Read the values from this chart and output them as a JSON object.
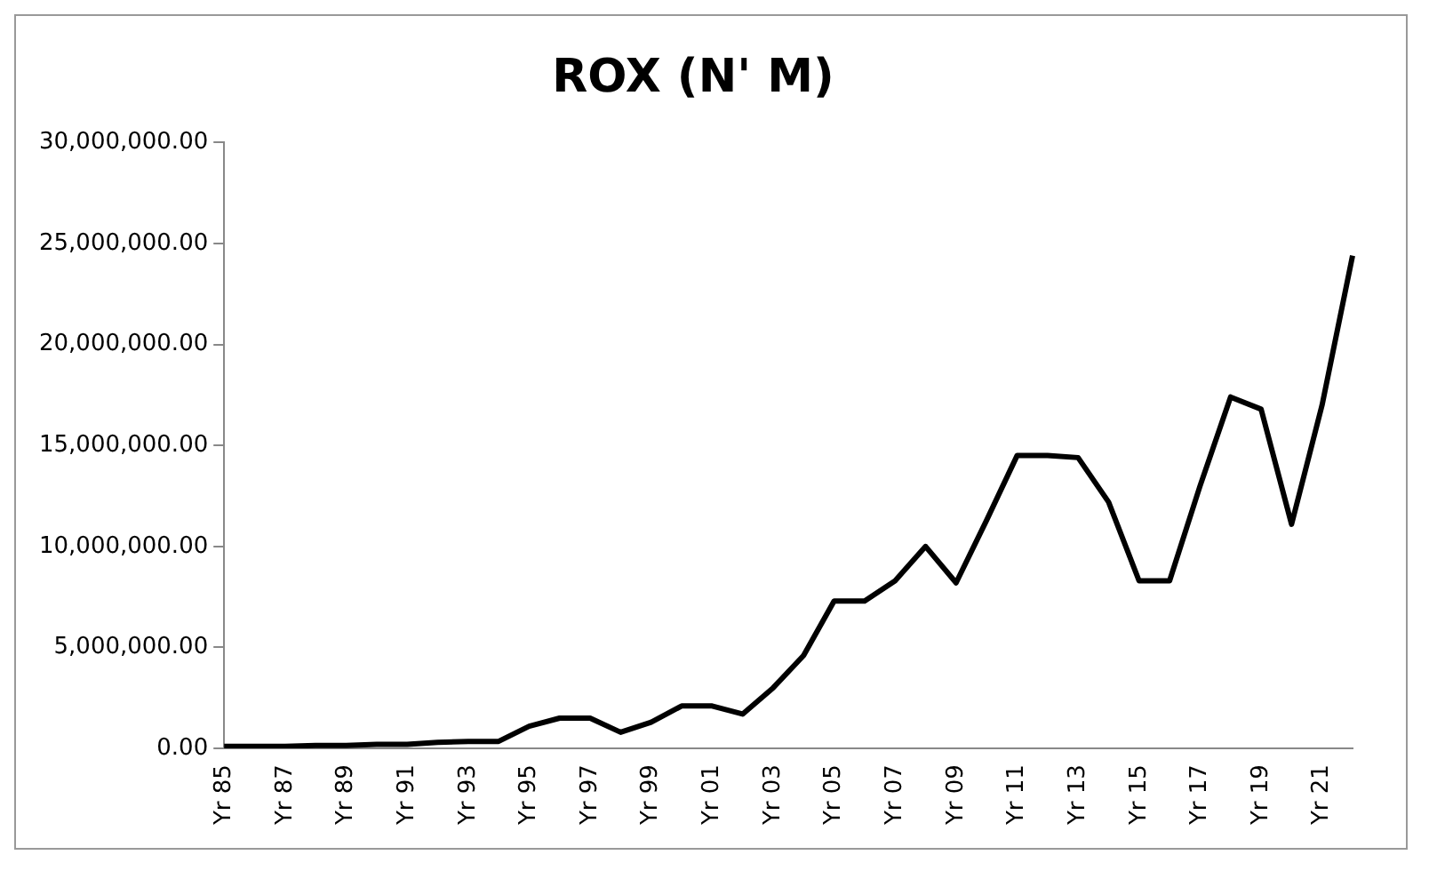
{
  "chart_data": {
    "type": "line",
    "title": "ROX (N' M)",
    "categories": [
      "Yr 85",
      null,
      "Yr 87",
      null,
      "Yr 89",
      null,
      "Yr 91",
      null,
      "Yr 93",
      null,
      "Yr 95",
      null,
      "Yr 97",
      null,
      "Yr 99",
      null,
      "Yr 01",
      null,
      "Yr 03",
      null,
      "Yr 05",
      null,
      "Yr 07",
      null,
      "Yr 09",
      null,
      "Yr 11",
      null,
      "Yr 13",
      null,
      "Yr 15",
      null,
      "Yr 17",
      null,
      "Yr 19",
      null,
      "Yr 21",
      null
    ],
    "series": [
      {
        "color": "#000000",
        "values": [
          100000,
          100000,
          100000,
          150000,
          150000,
          200000,
          200000,
          300000,
          350000,
          350000,
          1100000,
          1500000,
          1500000,
          800000,
          1300000,
          2100000,
          2100000,
          1700000,
          3000000,
          4600000,
          7300000,
          7300000,
          8300000,
          10000000,
          8200000,
          11300000,
          14500000,
          14500000,
          14400000,
          12200000,
          8300000,
          8300000,
          13000000,
          17400000,
          16800000,
          11100000,
          17000000,
          24400000
        ]
      }
    ],
    "ylim": [
      0,
      30000000
    ],
    "yticks": [
      {
        "value": 0,
        "label": "0.00"
      },
      {
        "value": 5000000,
        "label": "5,000,000.00"
      },
      {
        "value": 10000000,
        "label": "10,000,000.00"
      },
      {
        "value": 15000000,
        "label": "15,000,000.00"
      },
      {
        "value": 20000000,
        "label": "20,000,000.00"
      },
      {
        "value": 25000000,
        "label": "25,000,000.00"
      },
      {
        "value": 30000000,
        "label": "30,000,000.00"
      }
    ],
    "grid": false,
    "legend": false,
    "marker": "none",
    "line_style": "solid"
  }
}
